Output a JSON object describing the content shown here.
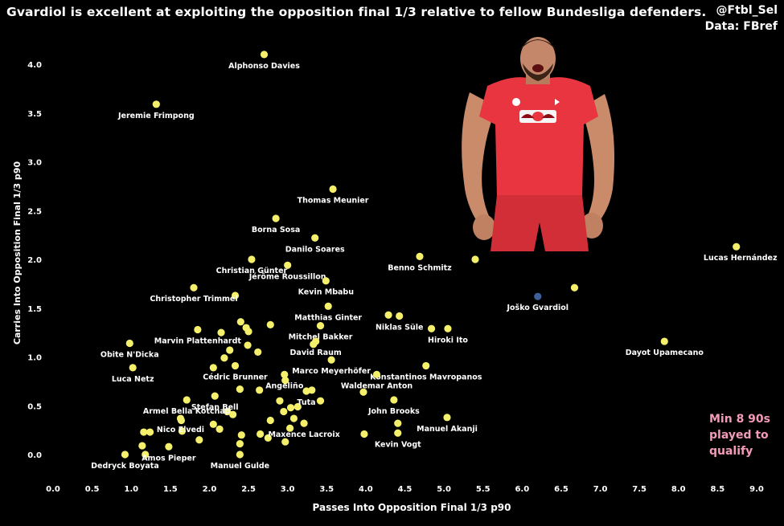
{
  "title": "Gvardiol is excellent at exploiting the opposition final 1/3 relative to fellow Bundesliga defenders.",
  "credit": {
    "handle": "@Ftbl_Sel",
    "source": "Data: FBref"
  },
  "note": [
    "Min 8 90s",
    "played to",
    "qualify"
  ],
  "colors": {
    "background": "#000000",
    "point": "#f5f06b",
    "highlight": "#3d5f9a",
    "note": "#f39bb8",
    "text": "#ffffff",
    "photo_shirt": "#e8353f"
  },
  "photo": {
    "icon": "player-photo",
    "subject": "Joško Gvardiol celebrating"
  },
  "chart_data": {
    "type": "scatter",
    "xlabel": "Passes Into Opposition Final 1/3 p90",
    "ylabel": "Carries Into Opposition Final 1/3 p90",
    "xlim": [
      0.0,
      9.0
    ],
    "ylim": [
      0.0,
      4.0
    ],
    "xticks": [
      "0.0",
      "0.5",
      "1.0",
      "1.5",
      "2.0",
      "2.5",
      "3.0",
      "3.5",
      "4.0",
      "4.5",
      "5.0",
      "5.5",
      "6.0",
      "6.5",
      "7.0",
      "7.5",
      "8.0",
      "8.5",
      "9.0"
    ],
    "yticks": [
      "0.0",
      "0.5",
      "1.0",
      "1.5",
      "2.0",
      "2.5",
      "3.0",
      "3.5",
      "4.0"
    ],
    "grid": false,
    "highlight": "Joško Gvardiol",
    "labeled_points": [
      {
        "name": "Alphonso Davies",
        "x": 2.7,
        "y": 4.1
      },
      {
        "name": "Jeremie Frimpong",
        "x": 1.32,
        "y": 3.59
      },
      {
        "name": "Thomas Meunier",
        "x": 3.58,
        "y": 2.72
      },
      {
        "name": "Borna Sosa",
        "x": 2.85,
        "y": 2.42
      },
      {
        "name": "Danilo Soares",
        "x": 3.35,
        "y": 2.22
      },
      {
        "name": "Christian Günter",
        "x": 2.54,
        "y": 2.0
      },
      {
        "name": "Jérôme Roussillon",
        "x": 3.0,
        "y": 1.94
      },
      {
        "name": "Benno Schmitz",
        "x": 4.69,
        "y": 2.03
      },
      {
        "name": "Lucas Hernández",
        "x": 8.74,
        "y": 2.13
      },
      {
        "name": "Kevin Mbabu",
        "x": 3.49,
        "y": 1.78
      },
      {
        "name": "Christopher Trimmel",
        "x": 1.8,
        "y": 1.71
      },
      {
        "name": "Matthias Ginter",
        "x": 3.52,
        "y": 1.52
      },
      {
        "name": "Joško Gvardiol",
        "x": 6.2,
        "y": 1.62
      },
      {
        "name": "Mitchel Bakker",
        "x": 3.42,
        "y": 1.32
      },
      {
        "name": "Niklas Süle",
        "x": 4.43,
        "y": 1.42
      },
      {
        "name": "Marvin Plattenhardt",
        "x": 1.85,
        "y": 1.28
      },
      {
        "name": "Hiroki Ito",
        "x": 5.05,
        "y": 1.29
      },
      {
        "name": "David Raum",
        "x": 3.36,
        "y": 1.16
      },
      {
        "name": "Dayot Upamecano",
        "x": 7.82,
        "y": 1.16
      },
      {
        "name": "Obite N'Dicka",
        "x": 0.98,
        "y": 1.14
      },
      {
        "name": "Konstantinos Mavropanos",
        "x": 4.77,
        "y": 0.91
      },
      {
        "name": "Marco Meyerhöfer",
        "x": 3.56,
        "y": 0.97
      },
      {
        "name": "Cédric Brunner",
        "x": 2.33,
        "y": 0.91
      },
      {
        "name": "Angeliño",
        "x": 2.96,
        "y": 0.82
      },
      {
        "name": "Luca Netz",
        "x": 1.02,
        "y": 0.89
      },
      {
        "name": "Waldemar Anton",
        "x": 4.14,
        "y": 0.82
      },
      {
        "name": "Tuta",
        "x": 3.24,
        "y": 0.65
      },
      {
        "name": "Armel Bella Kotchap",
        "x": 1.71,
        "y": 0.56
      },
      {
        "name": "Stefan Bell",
        "x": 2.07,
        "y": 0.6
      },
      {
        "name": "John Brooks",
        "x": 4.36,
        "y": 0.56
      },
      {
        "name": "Nico Elvedi",
        "x": 1.63,
        "y": 0.37
      },
      {
        "name": "Maxence Lacroix",
        "x": 3.21,
        "y": 0.32
      },
      {
        "name": "Manuel Akanji",
        "x": 5.04,
        "y": 0.38
      },
      {
        "name": "Kevin Vogt",
        "x": 4.41,
        "y": 0.22
      },
      {
        "name": "Amos Pieper",
        "x": 1.48,
        "y": 0.08
      },
      {
        "name": "Dedryck Boyata",
        "x": 0.92,
        "y": 0.0
      },
      {
        "name": "Manuel Gulde",
        "x": 2.39,
        "y": 0.0
      }
    ],
    "unlabeled_points": [
      {
        "x": 5.4,
        "y": 2.0
      },
      {
        "x": 6.67,
        "y": 1.71
      },
      {
        "x": 2.33,
        "y": 1.63
      },
      {
        "x": 4.29,
        "y": 1.43
      },
      {
        "x": 2.4,
        "y": 1.36
      },
      {
        "x": 2.47,
        "y": 1.3
      },
      {
        "x": 2.5,
        "y": 1.26
      },
      {
        "x": 2.15,
        "y": 1.25
      },
      {
        "x": 2.78,
        "y": 1.33
      },
      {
        "x": 4.84,
        "y": 1.29
      },
      {
        "x": 3.33,
        "y": 1.13
      },
      {
        "x": 2.49,
        "y": 1.12
      },
      {
        "x": 2.26,
        "y": 1.07
      },
      {
        "x": 2.62,
        "y": 1.05
      },
      {
        "x": 2.19,
        "y": 0.99
      },
      {
        "x": 2.05,
        "y": 0.89
      },
      {
        "x": 2.97,
        "y": 0.76
      },
      {
        "x": 2.39,
        "y": 0.67
      },
      {
        "x": 2.64,
        "y": 0.66
      },
      {
        "x": 3.31,
        "y": 0.66
      },
      {
        "x": 3.97,
        "y": 0.64
      },
      {
        "x": 3.42,
        "y": 0.55
      },
      {
        "x": 2.9,
        "y": 0.55
      },
      {
        "x": 3.13,
        "y": 0.49
      },
      {
        "x": 2.95,
        "y": 0.44
      },
      {
        "x": 3.04,
        "y": 0.48
      },
      {
        "x": 2.23,
        "y": 0.44
      },
      {
        "x": 2.3,
        "y": 0.41
      },
      {
        "x": 3.08,
        "y": 0.37
      },
      {
        "x": 2.78,
        "y": 0.35
      },
      {
        "x": 2.05,
        "y": 0.31
      },
      {
        "x": 1.64,
        "y": 0.35
      },
      {
        "x": 2.13,
        "y": 0.26
      },
      {
        "x": 3.03,
        "y": 0.27
      },
      {
        "x": 1.65,
        "y": 0.24
      },
      {
        "x": 1.16,
        "y": 0.23
      },
      {
        "x": 1.24,
        "y": 0.23
      },
      {
        "x": 4.41,
        "y": 0.32
      },
      {
        "x": 3.98,
        "y": 0.21
      },
      {
        "x": 2.41,
        "y": 0.2
      },
      {
        "x": 2.65,
        "y": 0.21
      },
      {
        "x": 2.75,
        "y": 0.17
      },
      {
        "x": 1.87,
        "y": 0.15
      },
      {
        "x": 2.39,
        "y": 0.11
      },
      {
        "x": 2.97,
        "y": 0.13
      },
      {
        "x": 1.14,
        "y": 0.09
      },
      {
        "x": 1.18,
        "y": 0.0
      }
    ]
  }
}
